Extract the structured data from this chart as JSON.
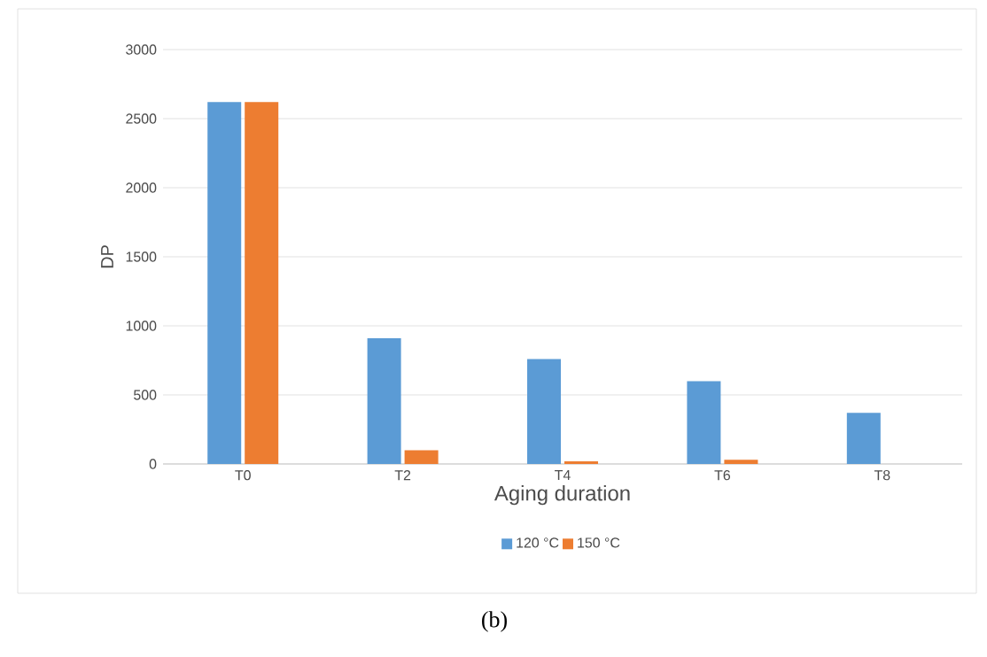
{
  "chart_data": {
    "type": "bar",
    "xlabel": "Aging  duration",
    "ylabel": "DP",
    "categories": [
      "T0",
      "T2",
      "T4",
      "T6",
      "T8"
    ],
    "series": [
      {
        "name": "120 °C",
        "color": "#5b9bd5",
        "values": [
          2620,
          910,
          760,
          600,
          370
        ]
      },
      {
        "name": "150 °C",
        "color": "#ed7d31",
        "values": [
          2620,
          100,
          20,
          30,
          0
        ]
      }
    ],
    "ylim": [
      0,
      3000
    ],
    "yticks": [
      0,
      500,
      1000,
      1500,
      2000,
      2500,
      3000
    ],
    "grid": "y",
    "legend": "bottom",
    "annotations": [
      "(b)"
    ]
  }
}
